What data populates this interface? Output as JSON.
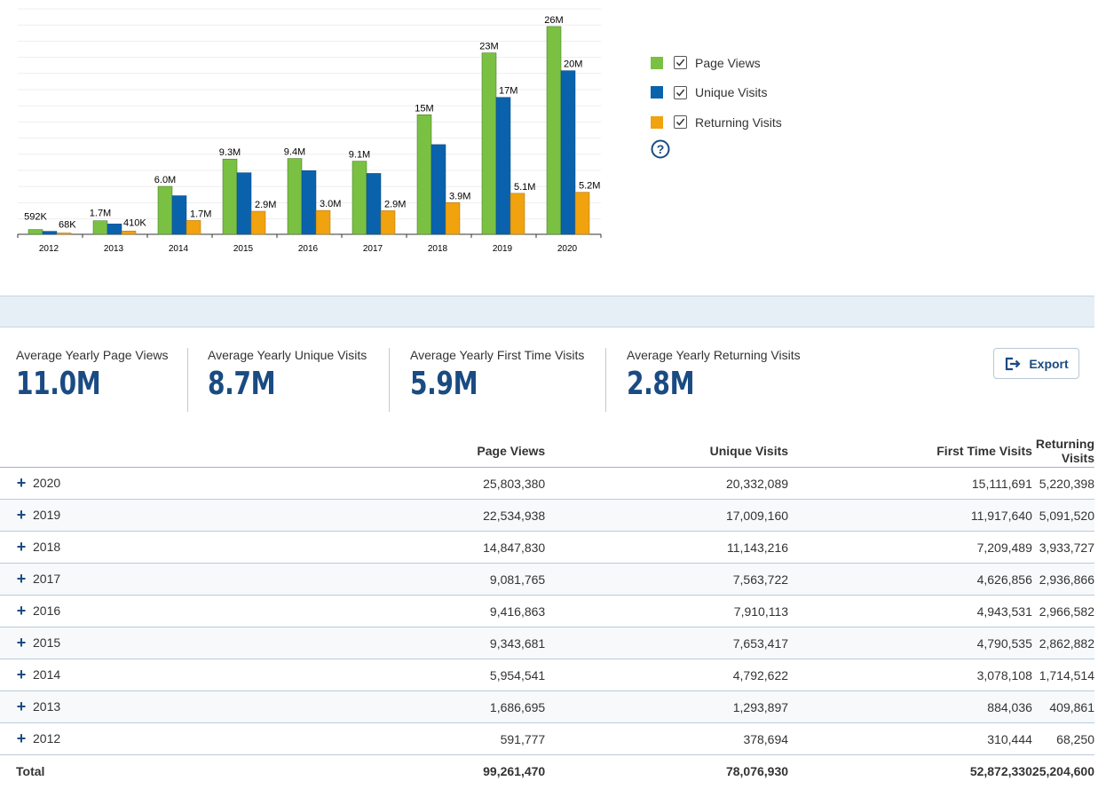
{
  "chart_data": {
    "type": "bar",
    "categories": [
      "2012",
      "2013",
      "2014",
      "2015",
      "2016",
      "2017",
      "2018",
      "2019",
      "2020"
    ],
    "series": [
      {
        "name": "Page Views",
        "color": "#7ac143",
        "values": [
          591777,
          1686695,
          5954541,
          9343681,
          9416863,
          9081765,
          14847830,
          22534938,
          25803380
        ],
        "labels": [
          "592K",
          "1.7M",
          "6.0M",
          "9.3M",
          "9.4M",
          "9.1M",
          "15M",
          "23M",
          "26M"
        ]
      },
      {
        "name": "Unique Visits",
        "color": "#0b62ac",
        "values": [
          378694,
          1293897,
          4792622,
          7653417,
          7910113,
          7563722,
          11143216,
          17009160,
          20332089
        ],
        "labels": [
          "",
          "",
          "",
          "",
          "",
          "",
          "",
          "17M",
          "20M"
        ]
      },
      {
        "name": "Returning Visits",
        "color": "#f0a20f",
        "values": [
          68250,
          409861,
          1714514,
          2862882,
          2966582,
          2936866,
          3933727,
          5091520,
          5220398
        ],
        "labels": [
          "68K",
          "410K",
          "1.7M",
          "2.9M",
          "3.0M",
          "2.9M",
          "3.9M",
          "5.1M",
          "5.2M"
        ]
      }
    ],
    "ylim": [
      0,
      28000000
    ],
    "grid": true,
    "legend": "right"
  },
  "help_icon": "question-circle-icon",
  "stats": [
    {
      "label": "Average Yearly Page Views",
      "value": "11.0M"
    },
    {
      "label": "Average Yearly Unique Visits",
      "value": "8.7M"
    },
    {
      "label": "Average Yearly First Time Visits",
      "value": "5.9M"
    },
    {
      "label": "Average Yearly Returning Visits",
      "value": "2.8M"
    }
  ],
  "export": {
    "label": "Export",
    "icon": "export-icon"
  },
  "table": {
    "headers": [
      "",
      "Page Views",
      "Unique Visits",
      "First Time Visits",
      "Returning Visits"
    ],
    "rows": [
      [
        "2020",
        "25,803,380",
        "20,332,089",
        "15,111,691",
        "5,220,398"
      ],
      [
        "2019",
        "22,534,938",
        "17,009,160",
        "11,917,640",
        "5,091,520"
      ],
      [
        "2018",
        "14,847,830",
        "11,143,216",
        "7,209,489",
        "3,933,727"
      ],
      [
        "2017",
        "9,081,765",
        "7,563,722",
        "4,626,856",
        "2,936,866"
      ],
      [
        "2016",
        "9,416,863",
        "7,910,113",
        "4,943,531",
        "2,966,582"
      ],
      [
        "2015",
        "9,343,681",
        "7,653,417",
        "4,790,535",
        "2,862,882"
      ],
      [
        "2014",
        "5,954,541",
        "4,792,622",
        "3,078,108",
        "1,714,514"
      ],
      [
        "2013",
        "1,686,695",
        "1,293,897",
        "884,036",
        "409,861"
      ],
      [
        "2012",
        "591,777",
        "378,694",
        "310,444",
        "68,250"
      ]
    ],
    "total": [
      "Total",
      "99,261,470",
      "78,076,930",
      "52,872,330",
      "25,204,600"
    ]
  }
}
